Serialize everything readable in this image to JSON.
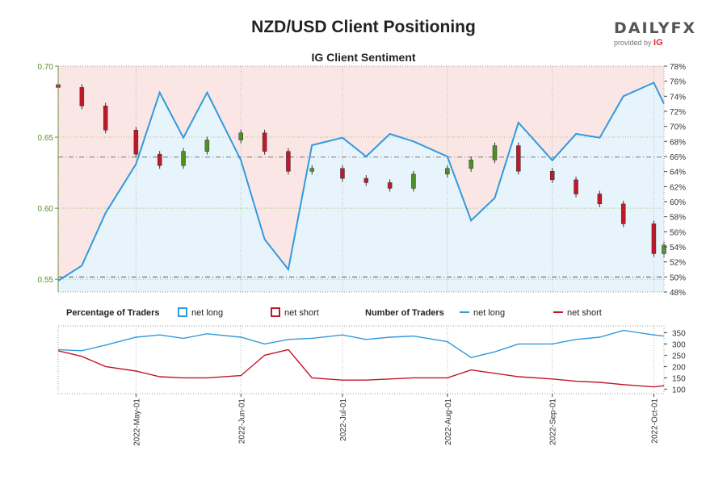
{
  "header": {
    "title": "NZD/USD Client Positioning",
    "subtitle": "IG Client Sentiment"
  },
  "logo": {
    "main": "DAILYFX",
    "sub": "provided by",
    "ig": "IG"
  },
  "legend": {
    "pct_label": "Percentage of Traders",
    "pct_long": "net long",
    "pct_short": "net short",
    "num_label": "Number of Traders",
    "num_long": "net long",
    "num_short": "net short"
  },
  "colors": {
    "long": "#3399dd",
    "short": "#c0182a",
    "price_axis": "#5a8f29",
    "bg_long": "#e8f4fb",
    "bg_short": "#fbe6e6",
    "candle_up": "#4d9221",
    "candle_down": "#c0182a"
  },
  "chart_data": [
    {
      "type": "line",
      "name": "price-and-sentiment",
      "price_axis": {
        "ticks": [
          "0.55",
          "0.60",
          "0.65",
          "0.70"
        ],
        "ylim": [
          0.541,
          0.7
        ],
        "reference_line": 0.636
      },
      "percent_axis": {
        "ticks": [
          "48%",
          "50%",
          "52%",
          "54%",
          "56%",
          "58%",
          "60%",
          "62%",
          "64%",
          "66%",
          "68%",
          "70%",
          "72%",
          "74%",
          "76%",
          "78%"
        ],
        "ylim": [
          48,
          78
        ],
        "reference_line": 50
      },
      "x_dates": [
        "2022-04-08",
        "2022-04-15",
        "2022-04-22",
        "2022-05-01",
        "2022-05-08",
        "2022-05-15",
        "2022-05-22",
        "2022-06-01",
        "2022-06-08",
        "2022-06-15",
        "2022-06-22",
        "2022-07-01",
        "2022-07-08",
        "2022-07-15",
        "2022-07-22",
        "2022-08-01",
        "2022-08-08",
        "2022-08-15",
        "2022-08-22",
        "2022-09-01",
        "2022-09-08",
        "2022-09-15",
        "2022-09-22",
        "2022-10-01",
        "2022-10-04"
      ],
      "price": [
        0.685,
        0.672,
        0.655,
        0.638,
        0.63,
        0.64,
        0.648,
        0.653,
        0.64,
        0.626,
        0.628,
        0.621,
        0.618,
        0.614,
        0.624,
        0.628,
        0.634,
        0.644,
        0.626,
        0.62,
        0.61,
        0.603,
        0.589,
        0.568,
        0.574
      ],
      "pct_long": [
        49.5,
        51.5,
        58.5,
        65.0,
        74.5,
        68.5,
        74.5,
        65.5,
        55.0,
        51.0,
        67.5,
        68.5,
        66.0,
        69.0,
        68.0,
        66.0,
        57.5,
        60.5,
        70.5,
        65.5,
        69.0,
        68.5,
        74.0,
        75.8,
        73.0
      ]
    },
    {
      "type": "line",
      "name": "number-of-traders",
      "yticks": [
        "100",
        "150",
        "200",
        "250",
        "300",
        "350"
      ],
      "ylim": [
        80,
        380
      ],
      "x_dates": [
        "2022-04-08",
        "2022-04-15",
        "2022-04-22",
        "2022-05-01",
        "2022-05-08",
        "2022-05-15",
        "2022-05-22",
        "2022-06-01",
        "2022-06-08",
        "2022-06-15",
        "2022-06-22",
        "2022-07-01",
        "2022-07-08",
        "2022-07-15",
        "2022-07-22",
        "2022-08-01",
        "2022-08-08",
        "2022-08-15",
        "2022-08-22",
        "2022-09-01",
        "2022-09-08",
        "2022-09-15",
        "2022-09-22",
        "2022-10-01",
        "2022-10-04"
      ],
      "net_long": [
        275,
        270,
        295,
        330,
        340,
        325,
        345,
        330,
        300,
        320,
        325,
        340,
        320,
        330,
        335,
        310,
        240,
        265,
        300,
        300,
        320,
        330,
        360,
        340,
        335
      ],
      "net_short": [
        270,
        245,
        200,
        180,
        155,
        150,
        150,
        160,
        250,
        275,
        150,
        140,
        140,
        145,
        150,
        150,
        185,
        170,
        155,
        145,
        135,
        130,
        120,
        110,
        115
      ]
    }
  ],
  "x_axis": {
    "labels": [
      "2022-May-01",
      "2022-Jun-01",
      "2022-Jul-01",
      "2022-Aug-01",
      "2022-Sep-01",
      "2022-Oct-01"
    ]
  }
}
